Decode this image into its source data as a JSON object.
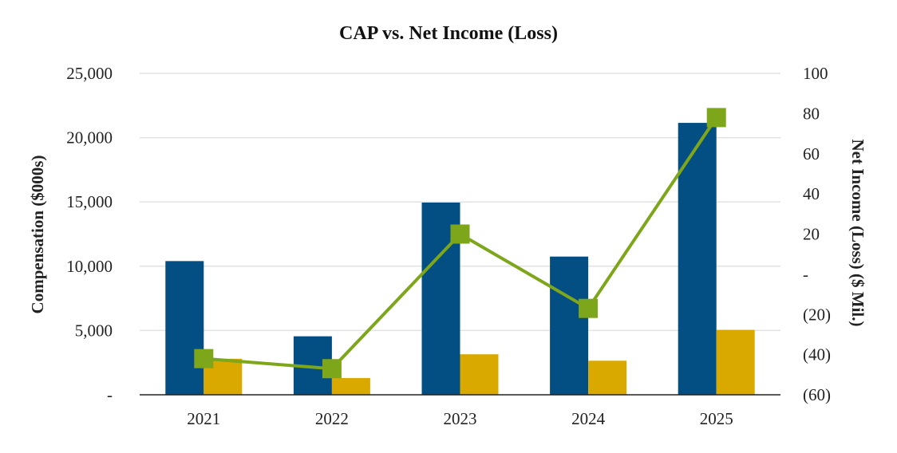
{
  "chart_data": {
    "type": "bar",
    "title": "CAP vs. Net Income (Loss)",
    "categories": [
      "2021",
      "2022",
      "2023",
      "2024",
      "2025"
    ],
    "ylabel": "Compensation ($000s)",
    "y2label": "Net Income (Loss) ($ Mil.)",
    "ylim": [
      0,
      25000
    ],
    "y2lim": [
      -60,
      100
    ],
    "y_ticks": [
      "-",
      "5,000",
      "10,000",
      "15,000",
      "20,000",
      "25,000"
    ],
    "y2_ticks": [
      "(60)",
      "(40)",
      "(20)",
      "-",
      "20",
      "40",
      "60",
      "80",
      "100"
    ],
    "series": [
      {
        "type": "bar",
        "axis": "left",
        "color": "#034e83",
        "values": [
          10400,
          4550,
          14950,
          10750,
          21150
        ]
      },
      {
        "type": "bar",
        "axis": "left",
        "color": "#d9a900",
        "values": [
          2800,
          1300,
          3150,
          2650,
          5050
        ]
      },
      {
        "type": "line",
        "axis": "right",
        "color": "#7ea61a",
        "marker": "square",
        "values": [
          -42,
          -47,
          20,
          -17,
          78
        ]
      }
    ],
    "grid": true,
    "legend": "none"
  }
}
